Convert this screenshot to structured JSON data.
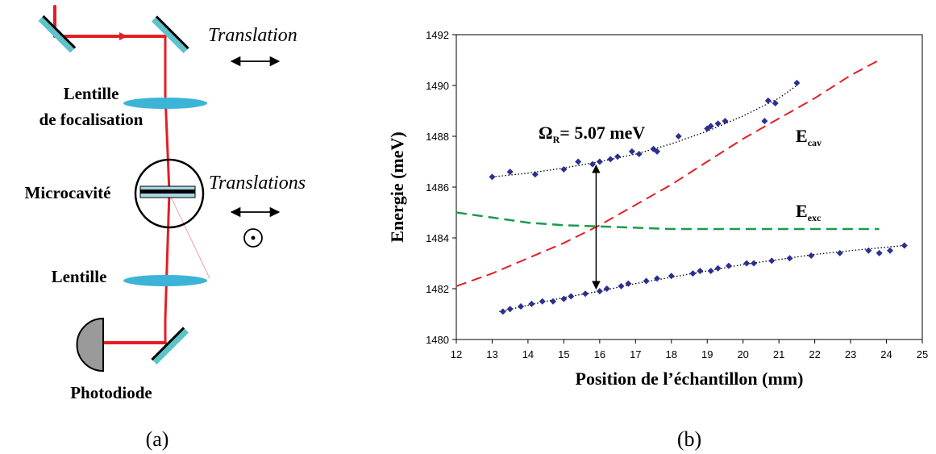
{
  "panel_a": {
    "caption": "(a)",
    "labels": {
      "translation": "Translation",
      "lens_focus_line1": "Lentille",
      "lens_focus_line2": "de focalisation",
      "microcavity": "Microcavité",
      "translations": "Translations",
      "lens": "Lentille",
      "photodiode": "Photodiode"
    },
    "colors": {
      "beam": "#e31e24",
      "optic": "#3cb4d8",
      "mirror": "#5cc3c9",
      "detector": "#9a9a9a"
    }
  },
  "panel_b": {
    "caption": "(b)",
    "annotations": {
      "omega_symbol": "Ω",
      "omega_sub": "R",
      "omega_value": "= 5.07 meV",
      "ecav_main": "E",
      "ecav_sub": "cav",
      "eexc_main": "E",
      "eexc_sub": "exc"
    },
    "colors": {
      "points": "#2b2f8f",
      "cavity": "#e31e24",
      "exciton": "#1a9a4a",
      "fit": "#000000"
    }
  },
  "chart_data": {
    "type": "scatter",
    "xlabel": "Position de l’échantillon (mm)",
    "ylabel": "Energie (meV)",
    "xlim": [
      12,
      25
    ],
    "ylim": [
      1480,
      1492
    ],
    "xticks": [
      12,
      13,
      14,
      15,
      16,
      17,
      18,
      19,
      20,
      21,
      22,
      23,
      24,
      25
    ],
    "yticks": [
      1480,
      1482,
      1484,
      1486,
      1488,
      1490,
      1492
    ],
    "grid": false,
    "series": [
      {
        "kind": "points",
        "x": [
          13.0,
          13.5,
          14.2,
          15.0,
          15.4,
          15.8,
          16.0,
          16.3,
          16.5,
          16.9,
          17.1,
          17.5,
          17.6,
          18.2,
          19.0,
          19.1,
          19.3,
          19.5,
          20.6,
          20.7,
          20.9,
          21.5
        ],
        "y": [
          1486.4,
          1486.6,
          1486.5,
          1486.7,
          1487.0,
          1486.9,
          1487.0,
          1487.1,
          1487.2,
          1487.4,
          1487.3,
          1487.5,
          1487.4,
          1488.0,
          1488.3,
          1488.4,
          1488.5,
          1488.6,
          1488.6,
          1489.4,
          1489.3,
          1490.1
        ]
      },
      {
        "kind": "points",
        "x": [
          13.3,
          13.5,
          13.8,
          14.1,
          14.4,
          14.7,
          15.0,
          15.2,
          15.6,
          16.0,
          16.2,
          16.6,
          16.8,
          17.3,
          17.6,
          18.0,
          18.6,
          18.8,
          19.1,
          19.3,
          19.6,
          20.1,
          20.3,
          20.8,
          21.3,
          21.9,
          22.7,
          23.5,
          23.8,
          24.1,
          24.5
        ],
        "y": [
          1481.1,
          1481.2,
          1481.3,
          1481.4,
          1481.5,
          1481.5,
          1481.6,
          1481.7,
          1481.8,
          1481.9,
          1482.0,
          1482.1,
          1482.2,
          1482.3,
          1482.4,
          1482.5,
          1482.6,
          1482.7,
          1482.7,
          1482.8,
          1482.9,
          1483.0,
          1483.0,
          1483.1,
          1483.2,
          1483.3,
          1483.4,
          1483.5,
          1483.4,
          1483.5,
          1483.7
        ]
      },
      {
        "kind": "fit",
        "x": [
          13.0,
          14.0,
          15.0,
          16.0,
          17.0,
          18.0,
          19.0,
          20.0,
          21.0,
          21.5
        ],
        "y": [
          1486.4,
          1486.55,
          1486.75,
          1487.0,
          1487.3,
          1487.7,
          1488.2,
          1488.8,
          1489.5,
          1490.0
        ]
      },
      {
        "kind": "fit",
        "x": [
          13.2,
          14.0,
          15.0,
          16.0,
          17.0,
          18.0,
          19.0,
          20.0,
          21.0,
          22.0,
          23.0,
          24.5
        ],
        "y": [
          1481.1,
          1481.35,
          1481.65,
          1481.9,
          1482.2,
          1482.45,
          1482.7,
          1482.95,
          1483.15,
          1483.35,
          1483.5,
          1483.7
        ]
      },
      {
        "kind": "cavity",
        "x": [
          12.0,
          13.0,
          14.0,
          15.0,
          16.0,
          17.0,
          18.0,
          19.0,
          20.0,
          21.0,
          22.0,
          23.0,
          23.8
        ],
        "y": [
          1482.1,
          1482.6,
          1483.2,
          1483.8,
          1484.5,
          1485.3,
          1486.1,
          1487.0,
          1487.9,
          1488.7,
          1489.5,
          1490.4,
          1491.0
        ]
      },
      {
        "kind": "exciton",
        "x": [
          12.0,
          13.0,
          14.0,
          15.0,
          16.0,
          17.0,
          18.0,
          20.0,
          22.0,
          23.8
        ],
        "y": [
          1485.0,
          1484.8,
          1484.6,
          1484.5,
          1484.45,
          1484.4,
          1484.35,
          1484.35,
          1484.35,
          1484.35
        ]
      }
    ],
    "rabi_arrow": {
      "x": 15.9,
      "y_from": 1486.85,
      "y_to": 1482.0
    }
  }
}
